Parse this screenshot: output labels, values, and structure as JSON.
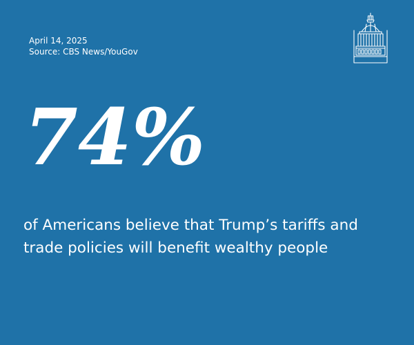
{
  "meta": {
    "date": "April 14, 2025",
    "source": "Source: CBS News/YouGov"
  },
  "stat": {
    "value": "74%",
    "line1": "of Americans believe that Trump’s tariffs and",
    "line2": "trade policies will benefit wealthy people"
  },
  "logo": {
    "icon": "capitol-dome-icon"
  },
  "colors": {
    "background": "#1f72a8",
    "text": "#ffffff"
  }
}
